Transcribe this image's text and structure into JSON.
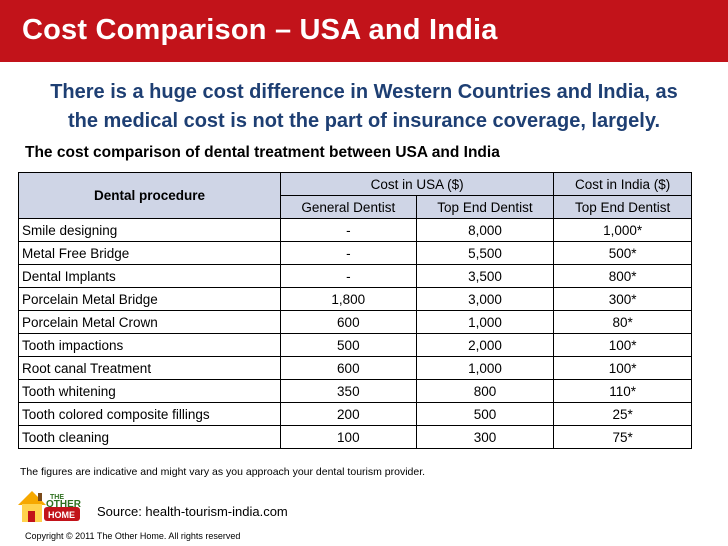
{
  "title": "Cost Comparison – USA and India",
  "intro_line1": "There is a huge cost difference in Western Countries and India, as",
  "intro_line2": "the medical cost is not the part of insurance coverage, largely.",
  "subtitle": "The cost comparison of dental treatment between USA and India",
  "table": {
    "procedure_header": "Dental procedure",
    "usa_header": "Cost in USA ($)",
    "india_header": "Cost in India ($)",
    "subheaders": [
      "General Dentist",
      "Top End Dentist",
      "Top End Dentist"
    ],
    "rows": [
      {
        "procedure": "Smile designing",
        "usa_general": "-",
        "usa_top": "8,000",
        "india_top": "1,000*"
      },
      {
        "procedure": "Metal Free Bridge",
        "usa_general": "-",
        "usa_top": "5,500",
        "india_top": "500*"
      },
      {
        "procedure": "Dental Implants",
        "usa_general": "-",
        "usa_top": "3,500",
        "india_top": "800*"
      },
      {
        "procedure": "Porcelain Metal Bridge",
        "usa_general": "1,800",
        "usa_top": "3,000",
        "india_top": "300*"
      },
      {
        "procedure": "Porcelain Metal Crown",
        "usa_general": "600",
        "usa_top": "1,000",
        "india_top": "80*"
      },
      {
        "procedure": "Tooth impactions",
        "usa_general": "500",
        "usa_top": "2,000",
        "india_top": "100*"
      },
      {
        "procedure": "Root canal Treatment",
        "usa_general": "600",
        "usa_top": "1,000",
        "india_top": "100*"
      },
      {
        "procedure": "Tooth whitening",
        "usa_general": "350",
        "usa_top": "800",
        "india_top": "110*"
      },
      {
        "procedure": "Tooth colored composite fillings",
        "usa_general": "200",
        "usa_top": "500",
        "india_top": "25*"
      },
      {
        "procedure": "Tooth cleaning",
        "usa_general": "100",
        "usa_top": "300",
        "india_top": "75*"
      }
    ]
  },
  "note": "The figures are indicative and might vary as you approach your dental tourism provider.",
  "logo": {
    "line1": "THE",
    "line2": "OTHER",
    "line3": "HOME"
  },
  "source": "Source: health-tourism-india.com",
  "copyright": "Copyright © 2011 The Other Home. All rights reserved",
  "colors": {
    "title_bar": "#c2131a",
    "intro_text": "#1e3f73",
    "table_header": "#cfd5e6"
  }
}
